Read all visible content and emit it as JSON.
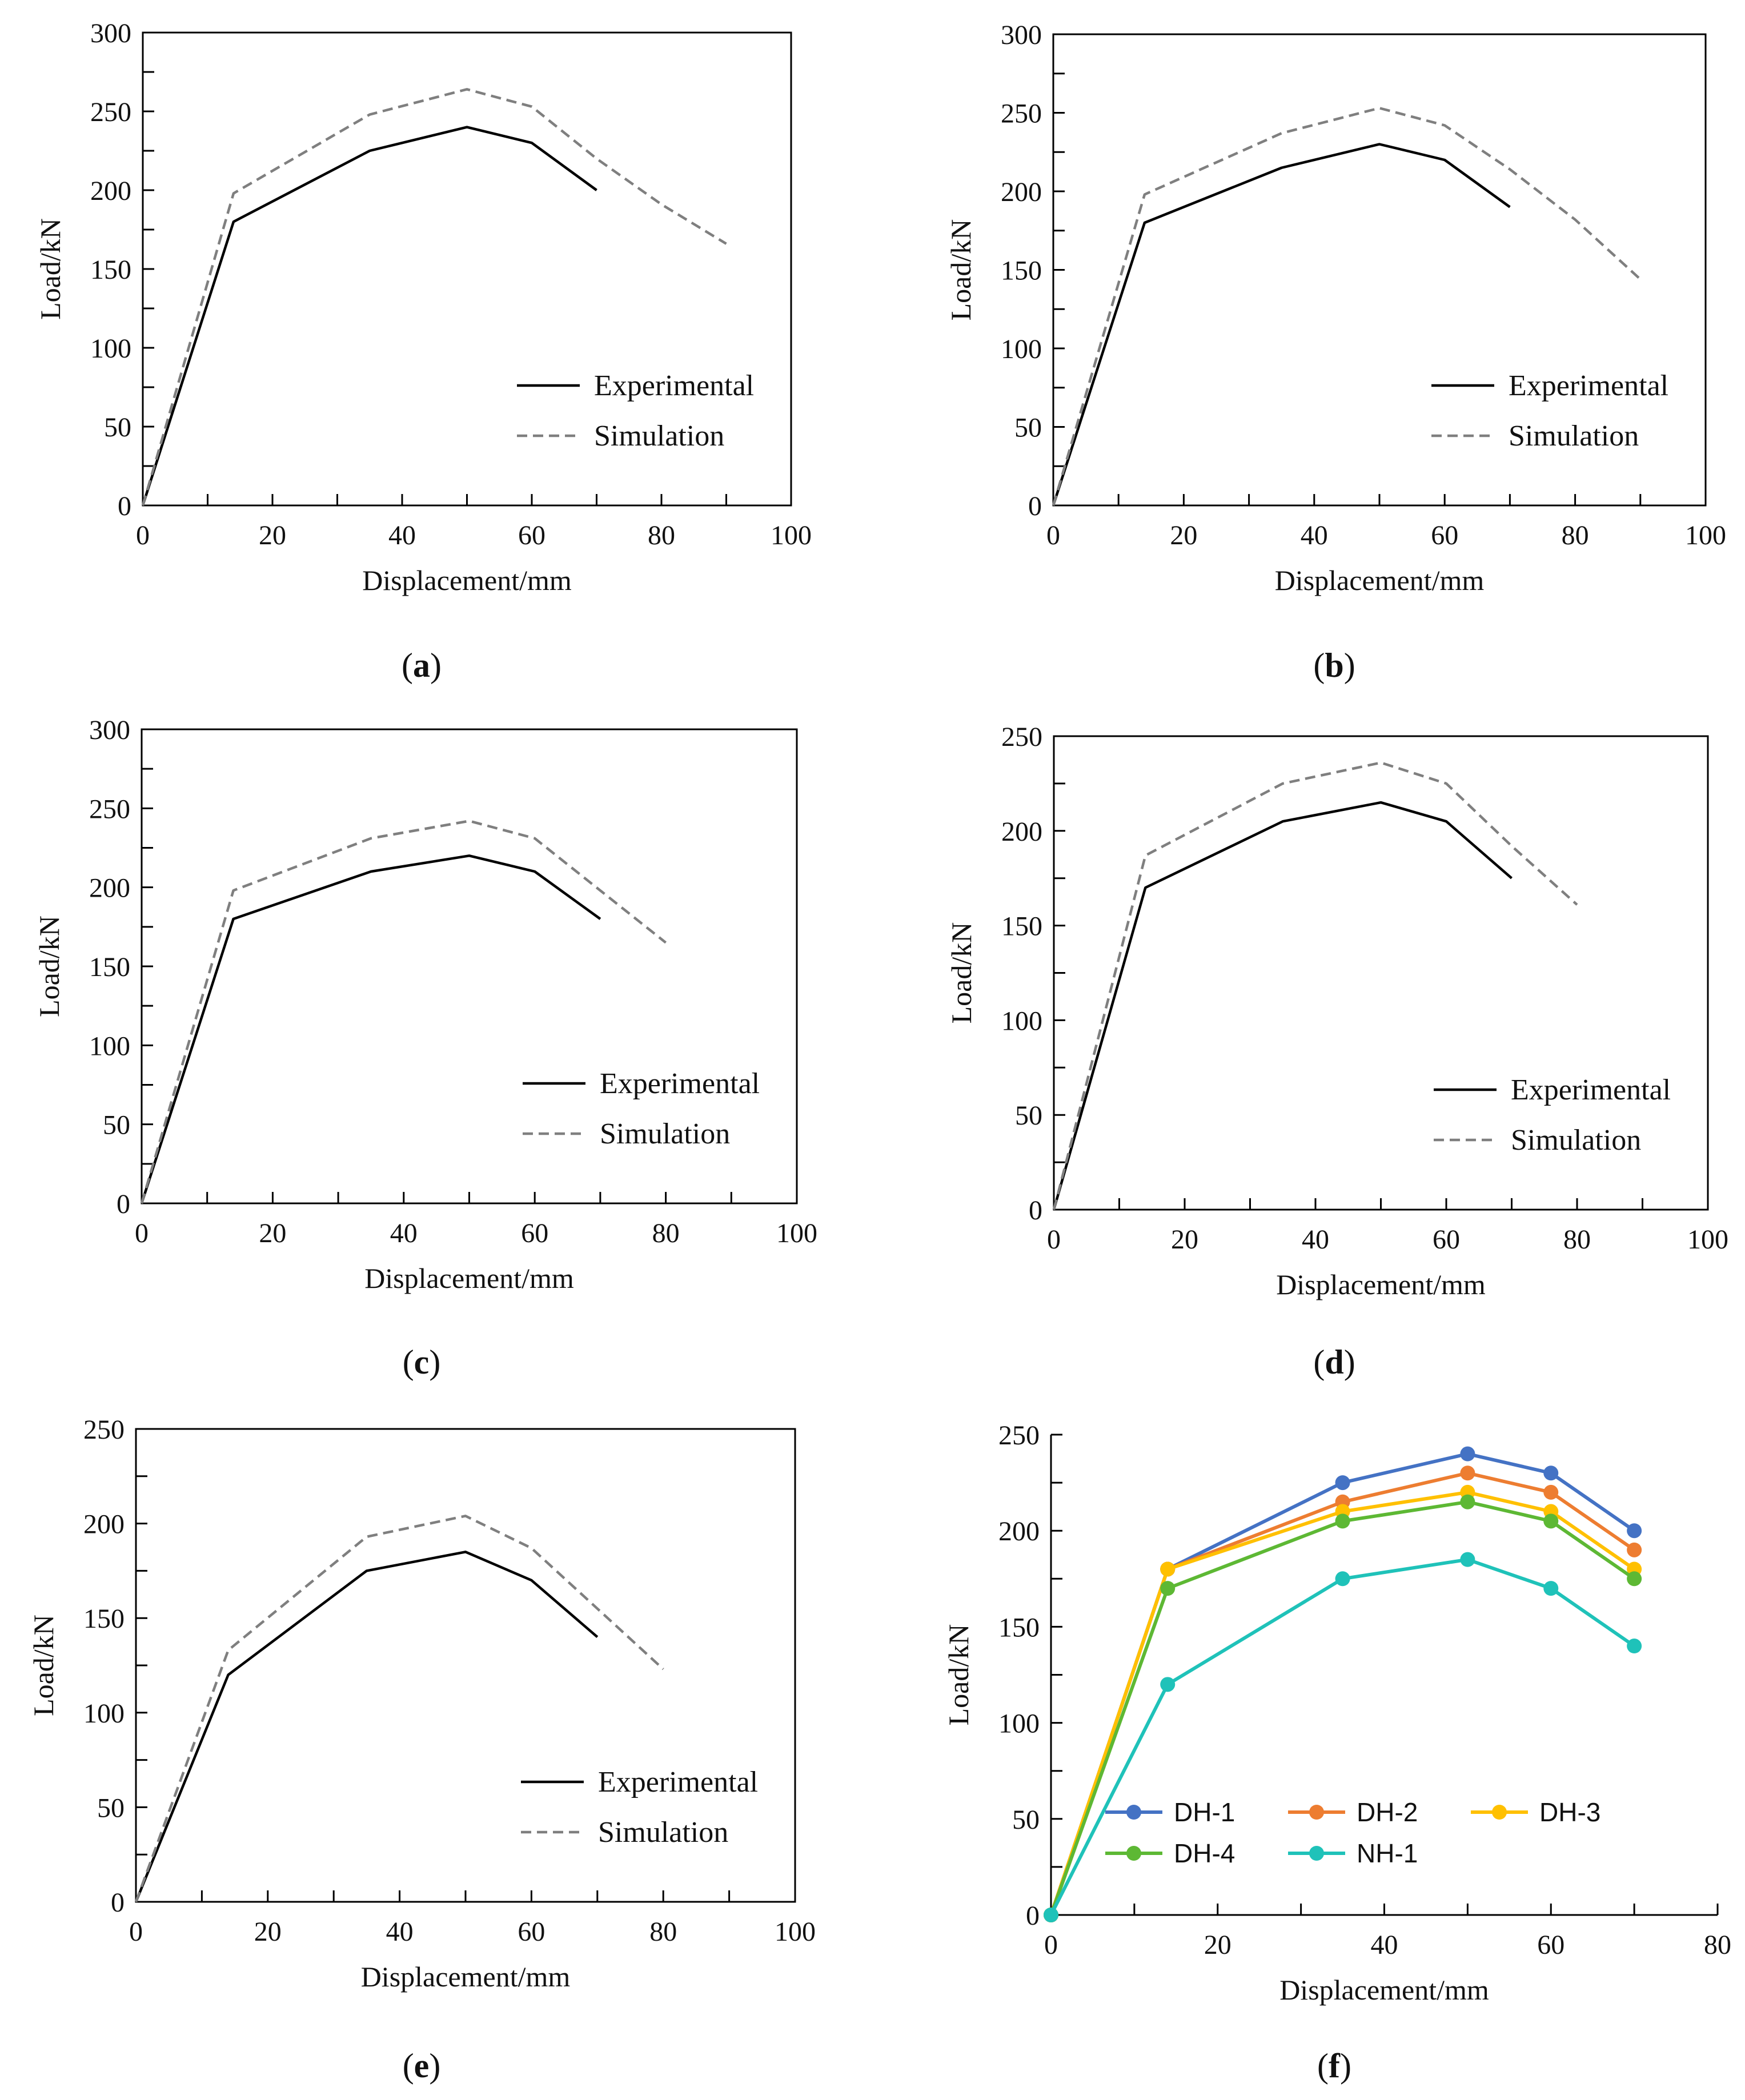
{
  "colors": {
    "experimental": "#000000",
    "simulation": "#7f7f7f",
    "DH-1": "#4472C4",
    "DH-2": "#ED7D31",
    "DH-3": "#FFC000",
    "DH-4": "#5DB834",
    "NH-1": "#1FC2B9"
  },
  "chart_data": [
    {
      "id": "a",
      "caption": "a",
      "type": "line",
      "xlabel": "Displacement/mm",
      "ylabel": "Load/kN",
      "xlim": [
        0,
        100
      ],
      "ylim": [
        0,
        300
      ],
      "xticks": [
        0,
        20,
        40,
        60,
        80,
        100
      ],
      "yticks": [
        0,
        50,
        100,
        150,
        200,
        250,
        300
      ],
      "legend": "bottom-right",
      "series": [
        {
          "name": "Experimental",
          "style": "solid",
          "x": [
            0,
            14,
            35,
            50,
            60,
            70
          ],
          "y": [
            0,
            180,
            225,
            240,
            230,
            200
          ]
        },
        {
          "name": "Simulation",
          "style": "dashed",
          "x": [
            0,
            14,
            35,
            50,
            60,
            70,
            80,
            90
          ],
          "y": [
            0,
            198,
            248,
            264,
            253,
            220,
            191,
            166
          ]
        }
      ]
    },
    {
      "id": "b",
      "caption": "b",
      "type": "line",
      "xlabel": "Displacement/mm",
      "ylabel": "Load/kN",
      "xlim": [
        0,
        100
      ],
      "ylim": [
        0,
        300
      ],
      "xticks": [
        0,
        20,
        40,
        60,
        80,
        100
      ],
      "yticks": [
        0,
        50,
        100,
        150,
        200,
        250,
        300
      ],
      "legend": "bottom-right",
      "series": [
        {
          "name": "Experimental",
          "style": "solid",
          "x": [
            0,
            14,
            35,
            50,
            60,
            70
          ],
          "y": [
            0,
            180,
            215,
            230,
            220,
            190
          ]
        },
        {
          "name": "Simulation",
          "style": "dashed",
          "x": [
            0,
            14,
            35,
            50,
            60,
            70,
            80,
            90
          ],
          "y": [
            0,
            198,
            237,
            253,
            242,
            214,
            182,
            144
          ]
        }
      ]
    },
    {
      "id": "c",
      "caption": "c",
      "type": "line",
      "xlabel": "Displacement/mm",
      "ylabel": "Load/kN",
      "xlim": [
        0,
        100
      ],
      "ylim": [
        0,
        300
      ],
      "xticks": [
        0,
        20,
        40,
        60,
        80,
        100
      ],
      "yticks": [
        0,
        50,
        100,
        150,
        200,
        250,
        300
      ],
      "legend": "bottom-right",
      "series": [
        {
          "name": "Experimental",
          "style": "solid",
          "x": [
            0,
            14,
            35,
            50,
            60,
            70
          ],
          "y": [
            0,
            180,
            210,
            220,
            210,
            180
          ]
        },
        {
          "name": "Simulation",
          "style": "dashed",
          "x": [
            0,
            14,
            35,
            50,
            60,
            70,
            80
          ],
          "y": [
            0,
            198,
            231,
            242,
            231,
            198,
            165
          ]
        }
      ]
    },
    {
      "id": "d",
      "caption": "d",
      "type": "line",
      "xlabel": "Displacement/mm",
      "ylabel": "Load/kN",
      "xlim": [
        0,
        100
      ],
      "ylim": [
        0,
        250
      ],
      "xticks": [
        0,
        20,
        40,
        60,
        80,
        100
      ],
      "yticks": [
        0,
        50,
        100,
        150,
        200,
        250
      ],
      "legend": "bottom-right",
      "series": [
        {
          "name": "Experimental",
          "style": "solid",
          "x": [
            0,
            14,
            35,
            50,
            60,
            70
          ],
          "y": [
            0,
            170,
            205,
            215,
            205,
            175
          ]
        },
        {
          "name": "Simulation",
          "style": "dashed",
          "x": [
            0,
            14,
            35,
            50,
            60,
            70,
            80
          ],
          "y": [
            0,
            187,
            225,
            236,
            225,
            192,
            161
          ]
        }
      ]
    },
    {
      "id": "e",
      "caption": "e",
      "type": "line",
      "xlabel": "Displacement/mm",
      "ylabel": "Load/kN",
      "xlim": [
        0,
        100
      ],
      "ylim": [
        0,
        250
      ],
      "xticks": [
        0,
        20,
        40,
        60,
        80,
        100
      ],
      "yticks": [
        0,
        50,
        100,
        150,
        200,
        250
      ],
      "legend": "bottom-right",
      "series": [
        {
          "name": "Experimental",
          "style": "solid",
          "x": [
            0,
            14,
            35,
            50,
            60,
            70
          ],
          "y": [
            0,
            120,
            175,
            185,
            170,
            140
          ]
        },
        {
          "name": "Simulation",
          "style": "dashed",
          "x": [
            0,
            14,
            35,
            50,
            60,
            70,
            80
          ],
          "y": [
            0,
            133,
            193,
            204,
            187,
            155,
            123
          ]
        }
      ]
    },
    {
      "id": "f",
      "caption": "f",
      "type": "line",
      "xlabel": "Displacement/mm",
      "ylabel": "Load/kN",
      "xlim": [
        0,
        80
      ],
      "ylim": [
        0,
        250
      ],
      "xticks": [
        0,
        20,
        40,
        60,
        80
      ],
      "yticks": [
        0,
        50,
        100,
        150,
        200,
        250
      ],
      "legend": "bottom-center",
      "series": [
        {
          "name": "DH-1",
          "style": "marker",
          "x": [
            0,
            14,
            35,
            50,
            60,
            70
          ],
          "y": [
            0,
            180,
            225,
            240,
            230,
            200
          ]
        },
        {
          "name": "DH-2",
          "style": "marker",
          "x": [
            0,
            14,
            35,
            50,
            60,
            70
          ],
          "y": [
            0,
            180,
            215,
            230,
            220,
            190
          ]
        },
        {
          "name": "DH-3",
          "style": "marker",
          "x": [
            0,
            14,
            35,
            50,
            60,
            70
          ],
          "y": [
            0,
            180,
            210,
            220,
            210,
            180
          ]
        },
        {
          "name": "DH-4",
          "style": "marker",
          "x": [
            0,
            14,
            35,
            50,
            60,
            70
          ],
          "y": [
            0,
            170,
            205,
            215,
            205,
            175
          ]
        },
        {
          "name": "NH-1",
          "style": "marker",
          "x": [
            0,
            14,
            35,
            50,
            60,
            70
          ],
          "y": [
            0,
            120,
            175,
            185,
            170,
            140
          ]
        }
      ]
    }
  ]
}
